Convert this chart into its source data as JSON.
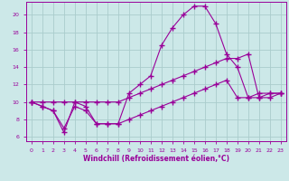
{
  "background_color": "#cce8e8",
  "grid_color": "#aacccc",
  "line_color": "#990099",
  "marker": "+",
  "xlabel": "Windchill (Refroidissement éolien,°C)",
  "xlim": [
    -0.5,
    23.5
  ],
  "ylim": [
    5.5,
    21.5
  ],
  "xticks": [
    0,
    1,
    2,
    3,
    4,
    5,
    6,
    7,
    8,
    9,
    10,
    11,
    12,
    13,
    14,
    15,
    16,
    17,
    18,
    19,
    20,
    21,
    22,
    23
  ],
  "yticks": [
    6,
    8,
    10,
    12,
    14,
    16,
    18,
    20
  ],
  "line1_x": [
    0,
    1,
    2,
    3,
    4,
    5,
    6,
    7,
    8,
    9,
    10,
    11,
    12,
    13,
    14,
    15,
    16,
    17,
    18,
    19,
    20,
    21,
    22,
    23
  ],
  "line1_y": [
    10,
    9.5,
    9,
    6.5,
    10,
    9.5,
    7.5,
    7.5,
    7.5,
    11,
    12,
    13,
    16.5,
    18.5,
    20,
    21,
    21,
    19,
    15.5,
    14,
    10.5,
    11,
    11,
    11
  ],
  "line2_x": [
    0,
    1,
    2,
    3,
    4,
    5,
    6,
    7,
    8,
    9,
    10,
    11,
    12,
    13,
    14,
    15,
    16,
    17,
    18,
    19,
    20,
    21,
    22,
    23
  ],
  "line2_y": [
    10,
    10,
    10,
    10,
    10,
    10,
    10,
    10,
    10,
    10.5,
    11,
    11.5,
    12,
    12.5,
    13,
    13.5,
    14,
    14.5,
    15,
    15,
    15.5,
    10.5,
    10.5,
    11
  ],
  "line3_x": [
    0,
    1,
    2,
    3,
    4,
    5,
    6,
    7,
    8,
    9,
    10,
    11,
    12,
    13,
    14,
    15,
    16,
    17,
    18,
    19,
    20,
    21,
    22,
    23
  ],
  "line3_y": [
    10,
    9.5,
    9,
    7,
    9.5,
    9,
    7.5,
    7.5,
    7.5,
    8,
    8.5,
    9,
    9.5,
    10,
    10.5,
    11,
    11.5,
    12,
    12.5,
    10.5,
    10.5,
    10.5,
    11,
    11
  ]
}
